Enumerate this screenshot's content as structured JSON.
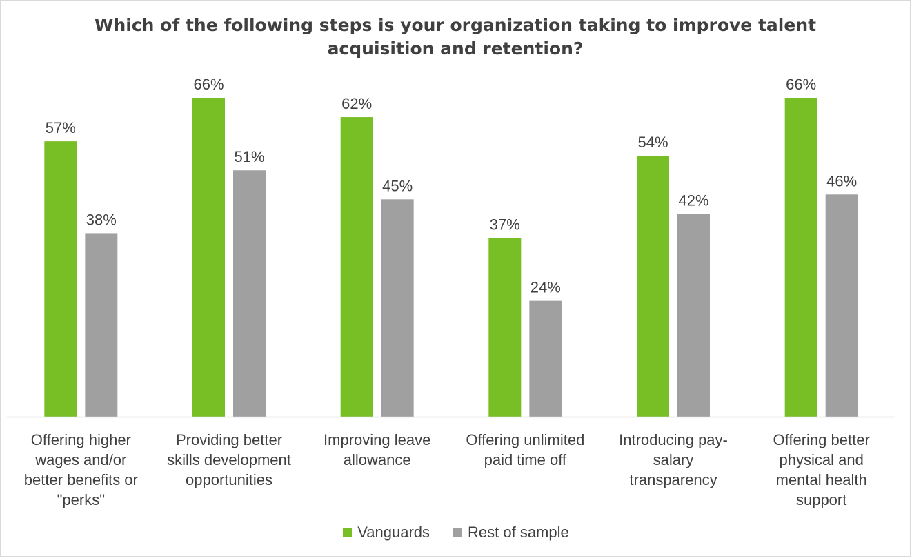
{
  "chart_data": {
    "type": "bar",
    "title": "Which of the following steps is your organization taking to improve talent acquisition and retention?",
    "categories": [
      [
        "Offering higher",
        "wages and/or",
        "better benefits or",
        "\"perks\""
      ],
      [
        "Providing better",
        "skills development",
        "opportunities"
      ],
      [
        "Improving leave",
        "allowance"
      ],
      [
        "Offering unlimited",
        "paid time off"
      ],
      [
        "Introducing pay-",
        "salary",
        "transparency"
      ],
      [
        "Offering better",
        "physical and",
        "mental health",
        "support"
      ]
    ],
    "series": [
      {
        "name": "Vanguards",
        "color": "#78bf26",
        "values": [
          57,
          66,
          62,
          37,
          54,
          66
        ],
        "labels": [
          "57%",
          "66%",
          "62%",
          "37%",
          "54%",
          "66%"
        ]
      },
      {
        "name": "Rest of sample",
        "color": "#a0a0a0",
        "values": [
          38,
          51,
          45,
          24,
          42,
          46
        ],
        "labels": [
          "38%",
          "51%",
          "45%",
          "24%",
          "42%",
          "46%"
        ]
      }
    ],
    "ylim": [
      0,
      66
    ],
    "grid": false,
    "legend_position": "bottom"
  }
}
